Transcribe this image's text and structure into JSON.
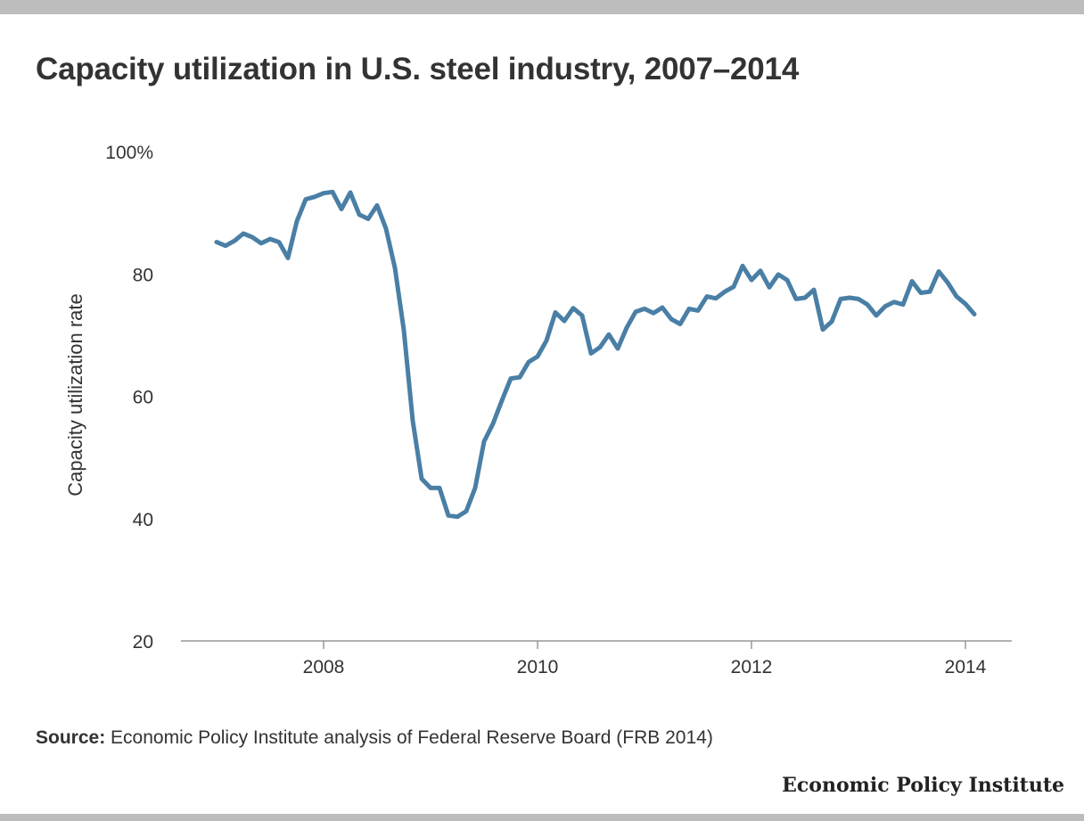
{
  "title": "Capacity utilization in U.S. steel industry, 2007–2014",
  "source_label": "Source:",
  "source_text": "Economic Policy Institute analysis of Federal Reserve Board (FRB 2014)",
  "brand": "Economic Policy Institute",
  "colors": {
    "line": "#4a7fa5",
    "axis": "#999999",
    "text": "#333333",
    "bars": "#bdbdbd"
  },
  "chart_data": {
    "type": "line",
    "title": "Capacity utilization in U.S. steel industry, 2007–2014",
    "xlabel": "",
    "ylabel": "Capacity utilization rate",
    "xlim": [
      2006.7,
      2014.5
    ],
    "ylim": [
      20,
      100
    ],
    "x_ticks": [
      2008,
      2010,
      2012,
      2014
    ],
    "x_tick_labels": [
      "2008",
      "2010",
      "2012",
      "2014"
    ],
    "y_ticks": [
      20,
      40,
      60,
      80,
      100
    ],
    "y_tick_labels": [
      "20",
      "40",
      "60",
      "80",
      "100%"
    ],
    "grid": false,
    "series": [
      {
        "x": [
          2007.0,
          2007.083,
          2007.167,
          2007.25,
          2007.333,
          2007.417,
          2007.5,
          2007.583,
          2007.667,
          2007.75,
          2007.833,
          2007.917,
          2008.0,
          2008.083,
          2008.167,
          2008.25,
          2008.333,
          2008.417,
          2008.5,
          2008.583,
          2008.667,
          2008.75,
          2008.833,
          2008.917,
          2009.0,
          2009.083,
          2009.167,
          2009.25,
          2009.333,
          2009.417,
          2009.5,
          2009.583,
          2009.667,
          2009.75,
          2009.833,
          2009.917,
          2010.0,
          2010.083,
          2010.167,
          2010.25,
          2010.333,
          2010.417,
          2010.5,
          2010.583,
          2010.667,
          2010.75,
          2010.833,
          2010.917,
          2011.0,
          2011.083,
          2011.167,
          2011.25,
          2011.333,
          2011.417,
          2011.5,
          2011.583,
          2011.667,
          2011.75,
          2011.833,
          2011.917,
          2012.0,
          2012.083,
          2012.167,
          2012.25,
          2012.333,
          2012.417,
          2012.5,
          2012.583,
          2012.667,
          2012.75,
          2012.833,
          2012.917,
          2013.0,
          2013.083,
          2013.167,
          2013.25,
          2013.333,
          2013.417,
          2013.5,
          2013.583,
          2013.667,
          2013.75,
          2013.833,
          2013.917,
          2014.0,
          2014.083
        ],
        "values": [
          85.2,
          84.6,
          85.4,
          86.6,
          86.0,
          85.0,
          85.7,
          85.2,
          82.6,
          88.6,
          92.2,
          92.6,
          93.2,
          93.4,
          90.6,
          93.3,
          89.7,
          89.0,
          91.2,
          87.4,
          81.0,
          70.8,
          56.0,
          46.5,
          45.0,
          45.0,
          40.5,
          40.3,
          41.2,
          45.0,
          52.6,
          55.5,
          59.3,
          62.9,
          63.1,
          65.6,
          66.5,
          69.1,
          73.7,
          72.3,
          74.4,
          73.2,
          67.0,
          68.0,
          70.1,
          67.8,
          71.2,
          73.8,
          74.3,
          73.6,
          74.5,
          72.6,
          71.8,
          74.3,
          74.0,
          76.3,
          76.0,
          77.1,
          77.9,
          81.3,
          79.0,
          80.5,
          77.8,
          79.9,
          79.0,
          75.9,
          76.1,
          77.4,
          70.9,
          72.2,
          75.9,
          76.1,
          75.9,
          75.0,
          73.2,
          74.7,
          75.4,
          75.0,
          78.8,
          76.9,
          77.1,
          80.4,
          78.6,
          76.3,
          75.1,
          73.4
        ]
      }
    ]
  }
}
